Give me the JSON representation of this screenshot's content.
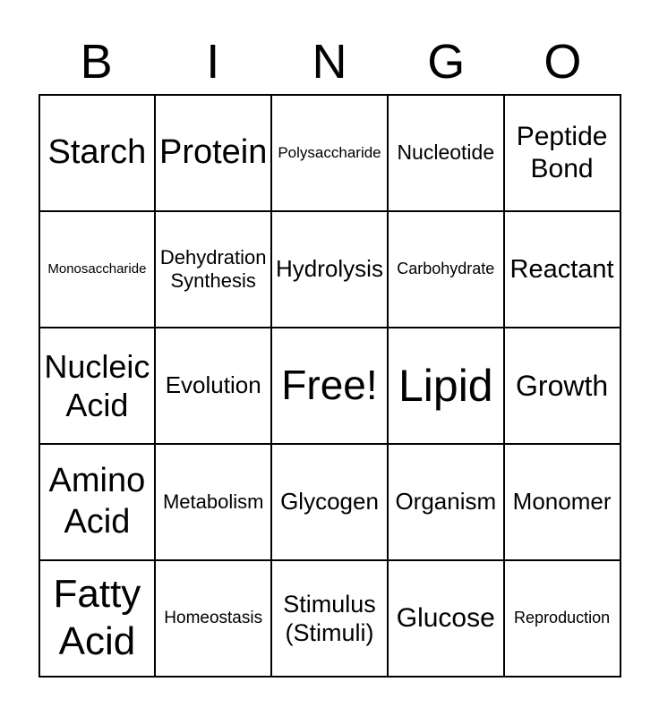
{
  "header": {
    "letters": [
      "B",
      "I",
      "N",
      "G",
      "O"
    ]
  },
  "grid": {
    "rows": [
      [
        "Starch",
        "Protein",
        "Polysaccharide",
        "Nucleotide",
        "Peptide Bond"
      ],
      [
        "Monosaccharide",
        "Dehydration Synthesis",
        "Hydrolysis",
        "Carbohydrate",
        "Reactant"
      ],
      [
        "Nucleic Acid",
        "Evolution",
        "Free!",
        "Lipid",
        "Growth"
      ],
      [
        "Amino Acid",
        "Metabolism",
        "Glycogen",
        "Organism",
        "Monomer"
      ],
      [
        "Fatty Acid",
        "Homeostasis",
        "Stimulus (Stimuli)",
        "Glucose",
        "Reproduction"
      ]
    ]
  },
  "colors": {
    "text": "#000000",
    "border": "#000000",
    "background": "#ffffff"
  }
}
